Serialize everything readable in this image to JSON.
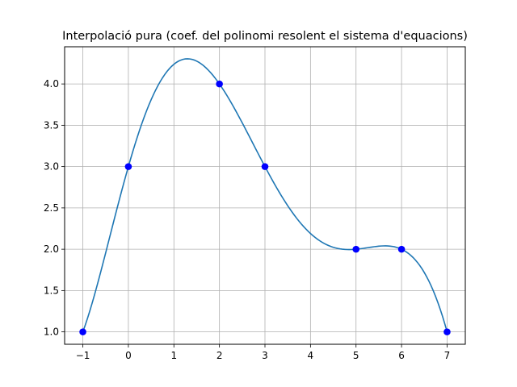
{
  "chart_data": {
    "type": "line",
    "title": "Interpolació pura (coef. del polinomi resolent el sistema d'equacions)",
    "xlabel": "",
    "ylabel": "",
    "xlim": [
      -1.4,
      7.4
    ],
    "ylim": [
      0.85,
      4.45
    ],
    "grid": true,
    "x_ticks": [
      -1,
      0,
      1,
      2,
      3,
      4,
      5,
      6,
      7
    ],
    "y_ticks": [
      1.0,
      1.5,
      2.0,
      2.5,
      3.0,
      3.5,
      4.0
    ],
    "x_tick_labels": [
      "−1",
      "0",
      "1",
      "2",
      "3",
      "4",
      "5",
      "6",
      "7"
    ],
    "y_tick_labels": [
      "1.0",
      "1.5",
      "2.0",
      "2.5",
      "3.0",
      "3.5",
      "4.0"
    ],
    "points": {
      "x": [
        -1,
        0,
        2,
        3,
        5,
        6,
        7
      ],
      "y": [
        1,
        3,
        4,
        3,
        2,
        2,
        1
      ]
    },
    "colors": {
      "curve": "#1f77b4",
      "points": "#0000ff",
      "grid": "#b0b0b0"
    }
  }
}
